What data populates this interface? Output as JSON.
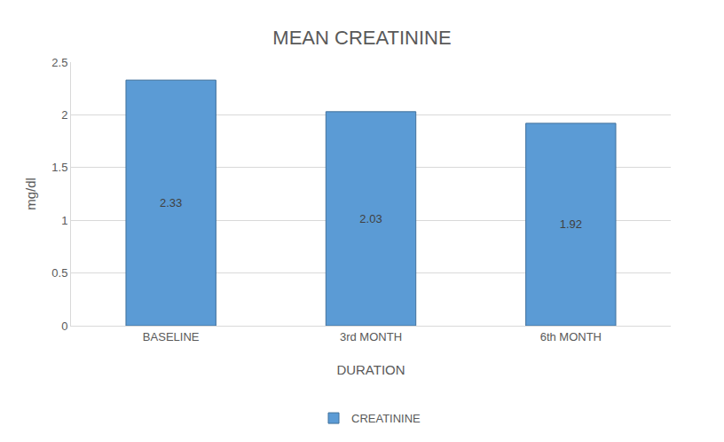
{
  "chart_data": {
    "type": "bar",
    "title": "MEAN CREATININE",
    "xlabel": "DURATION",
    "ylabel": "mg/dl",
    "categories": [
      "BASELINE",
      "3rd MONTH",
      "6th MONTH"
    ],
    "series": [
      {
        "name": "CREATININE",
        "color": "#5b9bd5",
        "values": [
          2.33,
          2.03,
          1.92
        ]
      }
    ],
    "ylim": [
      0,
      2.5
    ],
    "yticks": [
      0,
      0.5,
      1,
      1.5,
      2,
      2.5
    ],
    "grid": true,
    "data_labels": true,
    "legend": "bottom"
  }
}
